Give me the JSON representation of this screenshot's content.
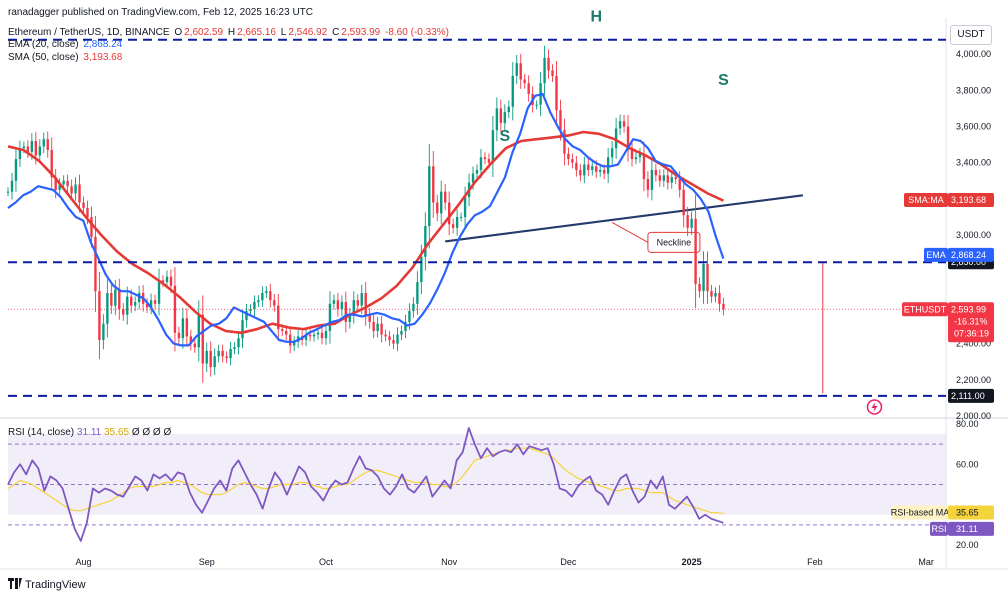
{
  "header": {
    "published": "ranadagger published on TradingView.com, Feb 12, 2025 16:23 UTC",
    "symbol": "Ethereum / TetherUS, 1D, BINANCE",
    "open_label": "O",
    "open": "2,602.59",
    "high_label": "H",
    "high": "2,665.16",
    "low_label": "L",
    "low": "2,546.92",
    "close_label": "C",
    "close": "2,593.99",
    "change": "-8.60 (-0.33%)",
    "ema_label": "EMA (20, close)",
    "ema_value": "2,868.24",
    "sma_label": "SMA (50, close)",
    "sma_value": "3,193.68",
    "rsi_label": "RSI (14, close)",
    "rsi_value": "31.11",
    "rsi_ma_value": "35.65",
    "rsi_na": "Ø Ø Ø Ø"
  },
  "currency": "USDT",
  "footer": "TradingView",
  "colors": {
    "up": "#089981",
    "down": "#f23645",
    "ema": "#2962ff",
    "sma": "#e53935",
    "neckline": "#233a6b",
    "level": "#0d1b9e",
    "rsi": "#7e57c2",
    "rsi_ma": "#f5d33a",
    "rsi_band": "#7e57c2"
  },
  "chart_data": [
    {
      "type": "candlestick",
      "title": "Ethereum / TetherUS, 1D, BINANCE",
      "x_ticks": [
        "Aug",
        "Sep",
        "Oct",
        "Nov",
        "Dec",
        "2025",
        "Feb",
        "Mar"
      ],
      "y_ticks": [
        "4,000.00",
        "3,800.00",
        "3,600.00",
        "3,400.00",
        "3,000.00",
        "2,400.00",
        "2,200.00",
        "2,000.00"
      ],
      "ylim": [
        2000,
        4200
      ],
      "start_date": "2024-07-13",
      "end_date": "2025-02-12",
      "close_series": [
        3240,
        3300,
        3420,
        3480,
        3490,
        3460,
        3520,
        3440,
        3490,
        3530,
        3470,
        3320,
        3250,
        3280,
        3300,
        3270,
        3230,
        3280,
        3180,
        3150,
        3100,
        2990,
        2690,
        2420,
        2510,
        2680,
        2610,
        2700,
        2590,
        2560,
        2660,
        2610,
        2630,
        2680,
        2620,
        2600,
        2640,
        2620,
        2750,
        2740,
        2770,
        2720,
        2460,
        2430,
        2540,
        2440,
        2400,
        2380,
        2560,
        2290,
        2360,
        2270,
        2330,
        2360,
        2330,
        2320,
        2370,
        2380,
        2430,
        2530,
        2580,
        2590,
        2630,
        2640,
        2680,
        2690,
        2640,
        2610,
        2480,
        2470,
        2450,
        2390,
        2410,
        2440,
        2420,
        2450,
        2440,
        2450,
        2460,
        2430,
        2470,
        2620,
        2640,
        2590,
        2630,
        2520,
        2560,
        2640,
        2610,
        2680,
        2560,
        2520,
        2470,
        2510,
        2450,
        2440,
        2420,
        2400,
        2450,
        2470,
        2520,
        2580,
        2620,
        2740,
        2880,
        3050,
        3380,
        3180,
        3120,
        3240,
        3180,
        3060,
        3040,
        3100,
        3100,
        3210,
        3290,
        3340,
        3360,
        3430,
        3420,
        3400,
        3580,
        3700,
        3620,
        3680,
        3710,
        3880,
        3950,
        3860,
        3840,
        3780,
        3720,
        3720,
        3840,
        3980,
        3910,
        3880,
        3690,
        3580,
        3450,
        3420,
        3400,
        3360,
        3330,
        3390,
        3360,
        3380,
        3350,
        3360,
        3340,
        3430,
        3480,
        3590,
        3630,
        3600,
        3470,
        3420,
        3430,
        3450,
        3310,
        3250,
        3360,
        3330,
        3300,
        3330,
        3290,
        3320,
        3310,
        3250,
        3110,
        3040,
        3090,
        2730,
        2690,
        2840,
        2690,
        2660,
        2680,
        2620,
        2590
      ],
      "ema20": [
        3150,
        3180,
        3220,
        3240,
        3270,
        3260,
        3250,
        3210,
        3150,
        3100,
        3080,
        2960,
        2870,
        2780,
        2720,
        2690,
        2690,
        2670,
        2650,
        2600,
        2530,
        2450,
        2400,
        2390,
        2390,
        2440,
        2470,
        2500,
        2510,
        2540,
        2600,
        2580,
        2560,
        2540,
        2520,
        2470,
        2420,
        2410,
        2410,
        2430,
        2460,
        2480,
        2500,
        2520,
        2530,
        2560,
        2560,
        2550,
        2560,
        2570,
        2560,
        2540,
        2530,
        2500,
        2510,
        2560,
        2620,
        2700,
        2790,
        2900,
        2990,
        3060,
        3110,
        3130,
        3160,
        3240,
        3320,
        3460,
        3560,
        3700,
        3770,
        3780,
        3680,
        3600,
        3530,
        3490,
        3470,
        3430,
        3400,
        3380,
        3380,
        3390,
        3460,
        3530,
        3520,
        3480,
        3410,
        3390,
        3380,
        3330,
        3280,
        3250,
        3200,
        3130,
        2990,
        2870
      ],
      "sma50": [
        3490,
        3470,
        3410,
        3320,
        3210,
        3100,
        3000,
        2910,
        2840,
        2790,
        2730,
        2660,
        2580,
        2510,
        2470,
        2460,
        2480,
        2510,
        2490,
        2480,
        2500,
        2510,
        2560,
        2600,
        2650,
        2720,
        2820,
        2950,
        3060,
        3170,
        3290,
        3390,
        3480,
        3520,
        3530,
        3540,
        3550,
        3570,
        3560,
        3530,
        3480,
        3440,
        3390,
        3330,
        3280,
        3230,
        3190
      ],
      "neckline": {
        "label": "Neckline"
      },
      "annotations": [
        "S",
        "H",
        "S"
      ],
      "levels": [
        {
          "value": 4080,
          "label": ""
        },
        {
          "value": 2850,
          "label": "2,850.00"
        },
        {
          "value": 2111,
          "label": "2,111.00"
        }
      ],
      "price_labels": {
        "sma": {
          "name": "SMA:MA",
          "value": "3,193.68"
        },
        "ema": {
          "name": "EMA",
          "value": "2,868.24"
        },
        "last": {
          "name": "ETHUSDT",
          "value": "2,593.99",
          "change": "-16.31%",
          "countdown": "07:36:19"
        }
      }
    },
    {
      "type": "line",
      "title": "RSI (14, close)",
      "ylim": [
        20,
        80
      ],
      "y_ticks": [
        "80.00",
        "60.00",
        "20.00"
      ],
      "bands": [
        30,
        50,
        70
      ],
      "series": [
        {
          "name": "RSI",
          "value_label": "31.11",
          "values": [
            50,
            56,
            60,
            55,
            62,
            58,
            47,
            54,
            52,
            48,
            38,
            28,
            22,
            31,
            48,
            46,
            48,
            47,
            45,
            44,
            49,
            54,
            52,
            47,
            55,
            53,
            55,
            52,
            56,
            55,
            46,
            40,
            36,
            42,
            48,
            52,
            47,
            58,
            62,
            56,
            50,
            45,
            38,
            48,
            56,
            52,
            45,
            52,
            59,
            56,
            49,
            46,
            42,
            48,
            52,
            50,
            51,
            58,
            64,
            58,
            57,
            54,
            48,
            45,
            49,
            55,
            48,
            46,
            50,
            54,
            44,
            48,
            52,
            48,
            62,
            66,
            78,
            70,
            63,
            68,
            64,
            66,
            67,
            66,
            70,
            65,
            69,
            68,
            67,
            68,
            60,
            48,
            47,
            44,
            49,
            52,
            54,
            47,
            45,
            40,
            47,
            53,
            55,
            47,
            41,
            44,
            52,
            48,
            54,
            40,
            38,
            41,
            44,
            39,
            33,
            35,
            33,
            32,
            31
          ]
        },
        {
          "name": "RSI-based MA",
          "value_label": "35.65",
          "values": [
            48,
            50,
            52,
            51,
            50,
            48,
            46,
            44,
            42,
            40,
            38,
            37,
            37,
            38,
            39,
            40,
            41,
            42,
            44,
            46,
            48,
            49,
            49,
            49,
            49,
            50,
            51,
            51,
            52,
            51,
            50,
            48,
            46,
            45,
            45,
            45,
            46,
            48,
            50,
            51,
            50,
            49,
            48,
            48,
            49,
            50,
            50,
            50,
            51,
            51,
            50,
            49,
            48,
            48,
            49,
            50,
            50,
            52,
            54,
            56,
            57,
            57,
            56,
            55,
            54,
            53,
            52,
            51,
            51,
            51,
            50,
            50,
            49,
            49,
            51,
            54,
            58,
            62,
            63,
            64,
            65,
            66,
            67,
            67,
            68,
            68,
            68,
            67,
            66,
            65,
            63,
            60,
            57,
            55,
            53,
            52,
            51,
            50,
            49,
            48,
            47,
            47,
            48,
            48,
            48,
            47,
            46,
            46,
            46,
            44,
            42,
            41,
            40,
            39,
            38,
            37,
            36,
            36,
            35.65
          ]
        }
      ]
    }
  ]
}
